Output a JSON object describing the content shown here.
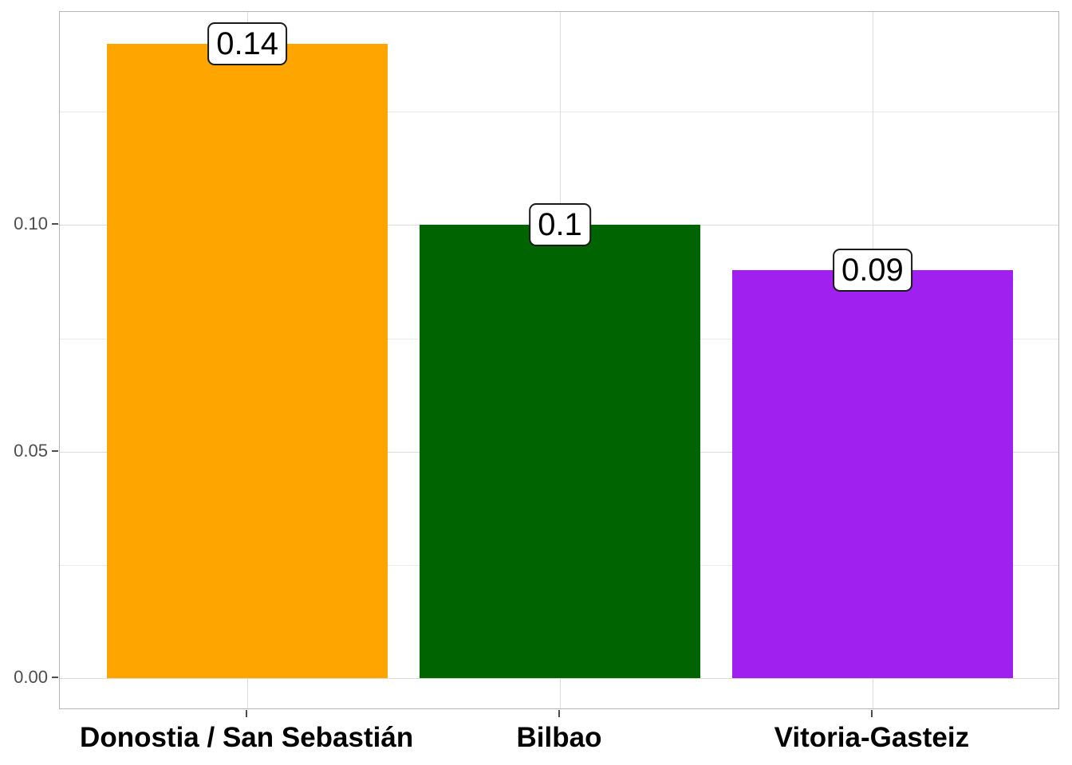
{
  "chart_data": {
    "type": "bar",
    "categories": [
      "Donostia / San Sebastián",
      "Bilbao",
      "Vitoria-Gasteiz"
    ],
    "values": [
      0.14,
      0.1,
      0.09
    ],
    "bar_labels": [
      "0.14",
      "0.1",
      "0.09"
    ],
    "bar_colors": [
      "#FFA500",
      "#006400",
      "#A020F0"
    ],
    "title": "",
    "xlabel": "",
    "ylabel": "",
    "ylim": [
      -0.007,
      0.147
    ],
    "xlim": [
      0.4,
      3.6
    ],
    "bar_width": 0.9,
    "yticks_major": [
      {
        "value": 0.0,
        "label": "0.00"
      },
      {
        "value": 0.05,
        "label": "0.05"
      },
      {
        "value": 0.1,
        "label": "0.10"
      }
    ],
    "yticks_minor": [
      0.025,
      0.075,
      0.125
    ],
    "grid": {
      "on": true,
      "major_color": "#dcdcdc",
      "minor_color": "#e9e9e9",
      "vertical_at_categories": true
    },
    "colors": {
      "panel_border": "#b5b5b5",
      "panel_background": "#ffffff",
      "figure_background": "#ffffff",
      "axis_tick": "#4d4d4d",
      "ytick_label": "#4d4d4d",
      "xtick_label": "#000000",
      "bar_value_label_text": "#000000",
      "bar_value_label_border": "#1a1a1a",
      "bar_value_label_background": "#ffffff"
    },
    "legend": {
      "visible": false
    }
  }
}
